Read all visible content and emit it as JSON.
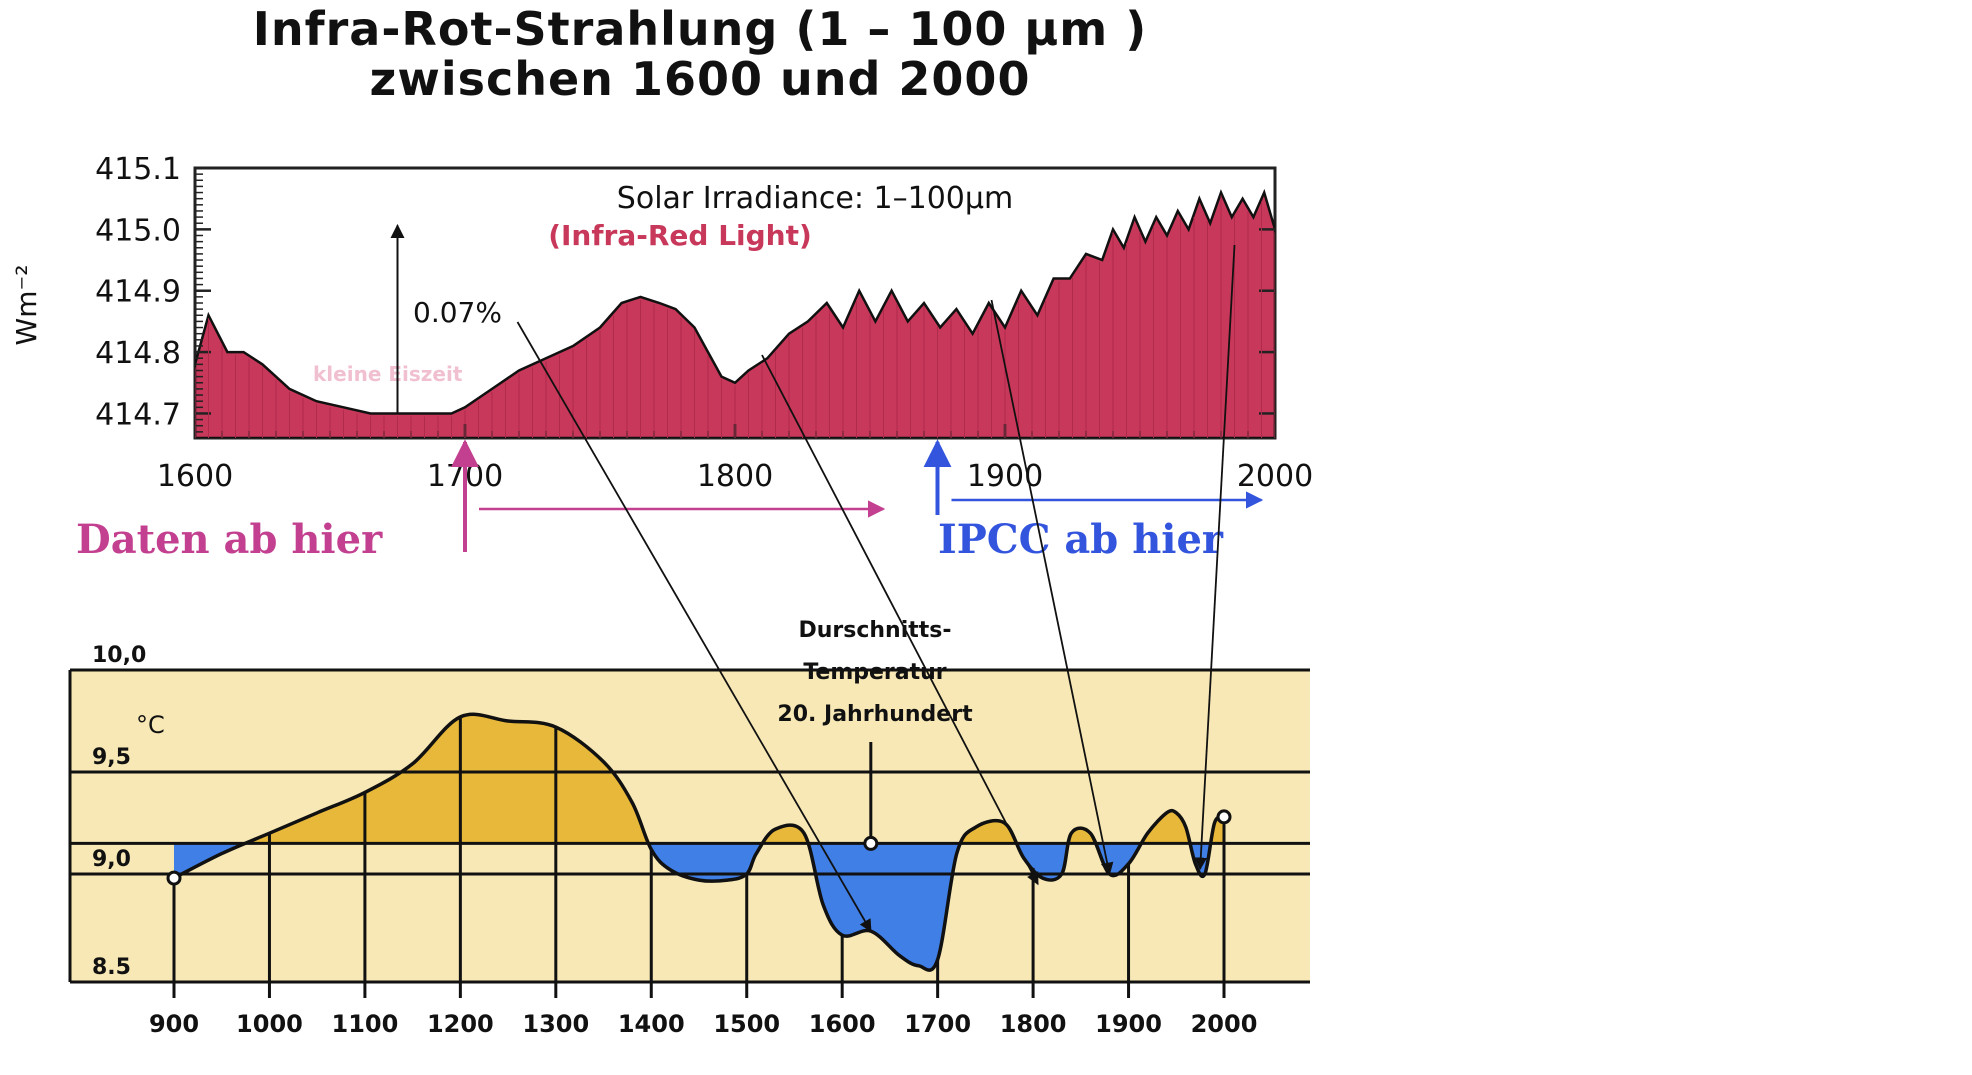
{
  "title": [
    "Infra-Rot-Strahlung (1 – 100 µm )",
    "zwischen 1600 und 2000"
  ],
  "colors": {
    "ir_fill": "#c8385a",
    "data_magenta": "#c2408f",
    "ipcc_blue": "#3355dd",
    "temp_warm": "#e8b83a",
    "temp_cold": "#3f7fe6",
    "temp_bg": "#f7e8b5"
  },
  "chart_data": [
    {
      "type": "area",
      "title": "Solar Irradiance: 1–100µm",
      "subtitle": "(Infra-Red Light)",
      "xlabel": "",
      "ylabel": "Wm⁻²",
      "xlim": [
        1600,
        2000
      ],
      "ylim": [
        414.66,
        415.1
      ],
      "xticks": [
        "1600",
        "1700",
        "1800",
        "1900",
        "2000"
      ],
      "yticks": [
        "414.7",
        "414.8",
        "414.9",
        "415.0",
        "415.1"
      ],
      "annotations": [
        "0.07%",
        "kleine Eiszeit"
      ],
      "x": [
        1600,
        1605,
        1612,
        1618,
        1625,
        1635,
        1645,
        1655,
        1665,
        1675,
        1685,
        1695,
        1700,
        1710,
        1720,
        1730,
        1740,
        1750,
        1758,
        1765,
        1772,
        1778,
        1785,
        1790,
        1795,
        1800,
        1805,
        1812,
        1820,
        1827,
        1834,
        1840,
        1846,
        1852,
        1858,
        1864,
        1870,
        1876,
        1882,
        1888,
        1894,
        1900,
        1906,
        1912,
        1918,
        1924,
        1930,
        1936,
        1940,
        1944,
        1948,
        1952,
        1956,
        1960,
        1964,
        1968,
        1972,
        1976,
        1980,
        1984,
        1988,
        1992,
        1996,
        2000
      ],
      "y": [
        414.78,
        414.86,
        414.8,
        414.8,
        414.78,
        414.74,
        414.72,
        414.71,
        414.7,
        414.7,
        414.7,
        414.7,
        414.71,
        414.74,
        414.77,
        414.79,
        414.81,
        414.84,
        414.88,
        414.89,
        414.88,
        414.87,
        414.84,
        414.8,
        414.76,
        414.75,
        414.77,
        414.79,
        414.83,
        414.85,
        414.88,
        414.84,
        414.9,
        414.85,
        414.9,
        414.85,
        414.88,
        414.84,
        414.87,
        414.83,
        414.88,
        414.84,
        414.9,
        414.86,
        414.92,
        414.92,
        414.96,
        414.95,
        415.0,
        414.97,
        415.02,
        414.98,
        415.02,
        414.99,
        415.03,
        415.0,
        415.05,
        415.01,
        415.06,
        415.02,
        415.05,
        415.02,
        415.06,
        415.0
      ]
    },
    {
      "type": "area",
      "title": "",
      "xlabel": "",
      "ylabel": "°C",
      "xlim": [
        900,
        2000
      ],
      "ylim": [
        8.5,
        10.0
      ],
      "baseline": 9.15,
      "xticks": [
        "900",
        "1000",
        "1100",
        "1200",
        "1300",
        "1400",
        "1500",
        "1600",
        "1700",
        "1800",
        "1900",
        "2000"
      ],
      "yticks": [
        "10,0",
        "9,5",
        "9,0",
        "8.5"
      ],
      "annotation": [
        "Durschnitts-",
        "Temperatur",
        "20. Jahrhundert"
      ],
      "x": [
        900,
        950,
        1000,
        1050,
        1100,
        1150,
        1200,
        1250,
        1300,
        1350,
        1380,
        1400,
        1420,
        1450,
        1480,
        1500,
        1510,
        1530,
        1560,
        1580,
        1600,
        1630,
        1660,
        1680,
        1700,
        1720,
        1740,
        1770,
        1790,
        1810,
        1830,
        1840,
        1860,
        1880,
        1900,
        1920,
        1940,
        1950,
        1960,
        1970,
        1980,
        1990,
        2000
      ],
      "y": [
        8.98,
        9.1,
        9.2,
        9.3,
        9.4,
        9.54,
        9.77,
        9.75,
        9.72,
        9.55,
        9.35,
        9.12,
        9.02,
        8.97,
        8.97,
        9.0,
        9.1,
        9.22,
        9.2,
        8.85,
        8.7,
        8.72,
        8.6,
        8.55,
        8.58,
        9.1,
        9.23,
        9.25,
        9.08,
        8.98,
        9.0,
        9.2,
        9.2,
        9.0,
        9.05,
        9.2,
        9.3,
        9.3,
        9.23,
        9.05,
        9.0,
        9.25,
        9.28
      ]
    }
  ],
  "markers": {
    "data_start_label": "Daten ab hier",
    "data_start_year": 1700,
    "ipcc_label": "IPCC ab hier",
    "ipcc_start_year": 1875
  }
}
